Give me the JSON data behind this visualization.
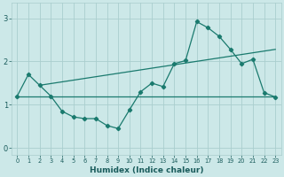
{
  "xlabel": "Humidex (Indice chaleur)",
  "background_color": "#cce8e8",
  "line_color": "#1a7a6e",
  "grid_color": "#aacece",
  "xlim": [
    -0.5,
    23.5
  ],
  "ylim": [
    -0.15,
    3.35
  ],
  "xticks": [
    0,
    1,
    2,
    3,
    4,
    5,
    6,
    7,
    8,
    9,
    10,
    11,
    12,
    13,
    14,
    15,
    16,
    17,
    18,
    19,
    20,
    21,
    22,
    23
  ],
  "yticks": [
    0,
    1,
    2,
    3
  ],
  "line1_x": [
    0,
    1,
    2,
    3,
    4,
    5,
    6,
    7,
    8,
    9,
    10,
    11,
    12,
    13,
    14,
    15,
    16,
    17,
    18,
    19,
    20,
    21,
    22,
    23
  ],
  "line1_y": [
    1.2,
    1.7,
    1.45,
    1.2,
    0.85,
    0.72,
    0.68,
    0.68,
    0.52,
    0.45,
    0.88,
    1.3,
    1.5,
    1.42,
    1.95,
    2.02,
    2.92,
    2.78,
    2.58,
    2.28,
    1.95,
    2.05,
    1.28,
    1.18
  ],
  "line2_x": [
    0,
    23
  ],
  "line2_y": [
    1.2,
    1.2
  ],
  "line3_x": [
    2,
    23
  ],
  "line3_y": [
    1.45,
    2.28
  ]
}
